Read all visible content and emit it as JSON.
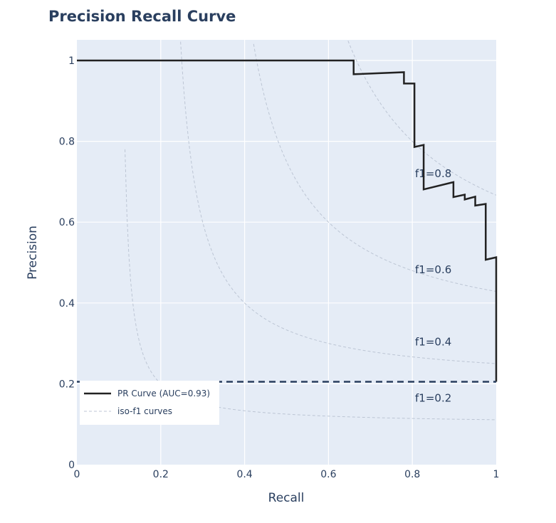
{
  "chart_data": {
    "type": "line",
    "title": "Precision Recall Curve",
    "xlabel": "Recall",
    "ylabel": "Precision",
    "xlim": [
      0,
      1
    ],
    "ylim": [
      0,
      1.05
    ],
    "xticks": [
      0,
      0.2,
      0.4,
      0.6,
      0.8,
      1
    ],
    "xtick_labels": [
      "0",
      "0.2",
      "0.4",
      "0.6",
      "0.8",
      "1"
    ],
    "yticks": [
      0,
      0.2,
      0.4,
      0.6,
      0.8,
      1
    ],
    "ytick_labels": [
      "0",
      "0.2",
      "0.4",
      "0.6",
      "0.8",
      "1"
    ],
    "grid": true,
    "legend_position": "bottom-left",
    "series": [
      {
        "name": "PR Curve (AUC=0.93)",
        "color": "#222222",
        "style": "solid",
        "x": [
          0,
          0.66,
          0.66,
          0.78,
          0.78,
          0.805,
          0.805,
          0.827,
          0.827,
          0.898,
          0.898,
          0.925,
          0.925,
          0.95,
          0.95,
          0.975,
          0.975,
          1.0,
          1.0
        ],
        "y": [
          1.0,
          1.0,
          0.966,
          0.971,
          0.943,
          0.943,
          0.786,
          0.791,
          0.681,
          0.699,
          0.662,
          0.668,
          0.656,
          0.663,
          0.641,
          0.645,
          0.507,
          0.513,
          0.205
        ]
      },
      {
        "name": "",
        "color": "#2a3f5f",
        "style": "dash",
        "x": [
          0,
          1
        ],
        "y": [
          0.205,
          0.205
        ]
      }
    ],
    "iso_f1": {
      "name": "iso-f1 curves",
      "color": "#bcc5d4",
      "style": "dot",
      "values": [
        0.2,
        0.4,
        0.6,
        0.8
      ],
      "labels": [
        "f1=0.2",
        "f1=0.4",
        "f1=0.6",
        "f1=0.8"
      ]
    },
    "legend": [
      {
        "label": "PR Curve (AUC=0.93)",
        "color": "#222222",
        "style": "solid"
      },
      {
        "label": "iso-f1 curves",
        "color": "#bcc5d4",
        "style": "dot"
      }
    ]
  }
}
